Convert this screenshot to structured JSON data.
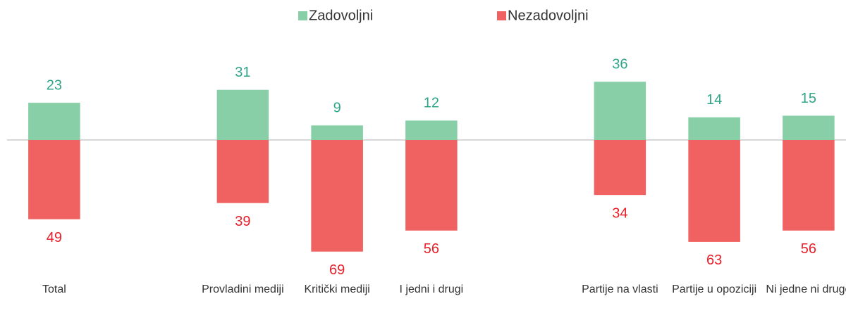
{
  "chart_data": {
    "type": "bar",
    "stacked": false,
    "categories": [
      "Total",
      null,
      "Provladini mediji",
      "Kritički mediji",
      "I jedni i drugi",
      null,
      "Partije na vlasti",
      "Partije u opoziciji",
      "Ni jedne ni druge"
    ],
    "series": [
      {
        "name": "Zadovoljni",
        "color": "#88cfa8",
        "label_color": "#2fa58a",
        "values": [
          23,
          null,
          31,
          9,
          12,
          null,
          36,
          14,
          15
        ]
      },
      {
        "name": "Nezadovoljni",
        "color": "#f06262",
        "label_color": "#e8202a",
        "values": [
          -49,
          null,
          -39,
          -69,
          -56,
          null,
          -34,
          -63,
          -56
        ],
        "value_labels": [
          "49",
          null,
          "39",
          "69",
          "56",
          null,
          "34",
          "63",
          "56"
        ]
      }
    ],
    "ylim": [
      -80,
      80
    ],
    "legend": "top"
  }
}
